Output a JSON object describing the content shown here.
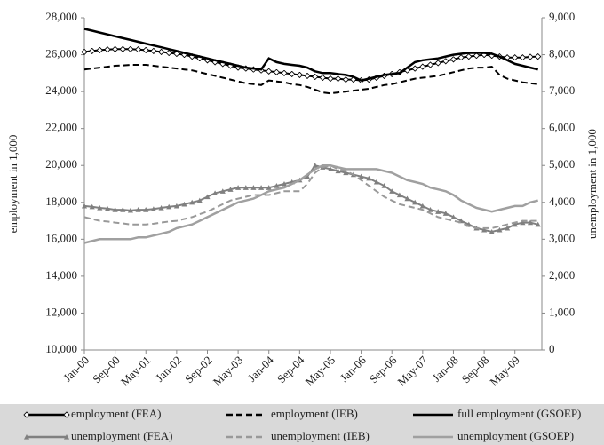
{
  "chart_data": {
    "type": "line",
    "y_label": "employment in 1,000",
    "y2_label": "unemployment in 1,000",
    "categories": [
      "Jan-00",
      null,
      null,
      null,
      "Sep-00",
      null,
      null,
      null,
      "May-01",
      null,
      null,
      null,
      "Jan-02",
      null,
      null,
      null,
      "Sep-02",
      null,
      null,
      null,
      "May-03",
      null,
      null,
      null,
      "Jan-04",
      null,
      null,
      null,
      "Sep-04",
      null,
      null,
      null,
      "May-05",
      null,
      null,
      null,
      "Jan-06",
      null,
      null,
      null,
      "Sep-06",
      null,
      null,
      null,
      "May-07",
      null,
      null,
      null,
      "Jan-08",
      null,
      null,
      null,
      "Sep-08",
      null,
      null,
      null,
      "May-09",
      null,
      null,
      null
    ],
    "ylim": [
      10000,
      28000
    ],
    "yticks": [
      {
        "value": 10000,
        "label": "10,000"
      },
      {
        "value": 12000,
        "label": "12,000"
      },
      {
        "value": 14000,
        "label": "14,000"
      },
      {
        "value": 16000,
        "label": "16,000"
      },
      {
        "value": 18000,
        "label": "18,000"
      },
      {
        "value": 20000,
        "label": "20,000"
      },
      {
        "value": 22000,
        "label": "22,000"
      },
      {
        "value": 24000,
        "label": "24,000"
      },
      {
        "value": 26000,
        "label": "26,000"
      },
      {
        "value": 28000,
        "label": "28,000"
      }
    ],
    "y2lim": [
      0,
      9000
    ],
    "y2ticks": [
      0,
      {
        "value": 1000,
        "label": "1,000"
      },
      {
        "value": 2000,
        "label": "2,000"
      },
      {
        "value": 3000,
        "label": "3,000"
      },
      {
        "value": 4000,
        "label": "4,000"
      },
      {
        "value": 5000,
        "label": "5,000"
      },
      {
        "value": 6000,
        "label": "6,000"
      },
      {
        "value": 7000,
        "label": "7,000"
      },
      {
        "value": 8000,
        "label": "8,000"
      },
      {
        "value": 9000,
        "label": "9,000"
      }
    ],
    "legend": "bottom",
    "series": [
      {
        "name": "employment (FEA)",
        "color": "#000000",
        "dash": "solid",
        "marker": "diamond",
        "axis": "y",
        "values": [
          26150,
          26200,
          26250,
          26280,
          26300,
          26300,
          26300,
          26280,
          26250,
          26200,
          26150,
          26100,
          26050,
          26000,
          25900,
          25800,
          25700,
          25600,
          25500,
          25400,
          25300,
          25250,
          25200,
          25150,
          25100,
          25050,
          25000,
          24950,
          24900,
          24850,
          24800,
          24750,
          24700,
          24700,
          24650,
          24650,
          24600,
          24650,
          24750,
          24850,
          24950,
          25050,
          25150,
          25250,
          25350,
          25450,
          25550,
          25650,
          25750,
          25850,
          25900,
          25950,
          26000,
          25950,
          25900,
          25850,
          25850,
          25850,
          25880,
          25900
        ]
      },
      {
        "name": "employment (IEB)",
        "color": "#000000",
        "dash": "dashed",
        "marker": "none",
        "axis": "y",
        "values": [
          25200,
          25250,
          25300,
          25350,
          25400,
          25420,
          25450,
          25450,
          25450,
          25400,
          25350,
          25300,
          25250,
          25200,
          25150,
          25050,
          24950,
          24850,
          24750,
          24650,
          24550,
          24450,
          24400,
          24350,
          24600,
          24550,
          24500,
          24400,
          24350,
          24250,
          24100,
          23950,
          23900,
          23950,
          24000,
          24050,
          24100,
          24150,
          24250,
          24350,
          24400,
          24500,
          24600,
          24700,
          24750,
          24800,
          24850,
          24950,
          25050,
          25150,
          25250,
          25300,
          25300,
          25350,
          24900,
          24700,
          24600,
          24500,
          24450,
          24400
        ]
      },
      {
        "name": "full employment (GSOEP)",
        "color": "#000000",
        "dash": "solid",
        "marker": "none",
        "axis": "y",
        "values": [
          27400,
          27300,
          27200,
          27100,
          27000,
          26900,
          26800,
          26700,
          26600,
          26500,
          26400,
          26300,
          26200,
          26100,
          26000,
          25900,
          25800,
          25700,
          25600,
          25500,
          25400,
          25300,
          25250,
          25200,
          25800,
          25600,
          25500,
          25450,
          25400,
          25300,
          25100,
          25000,
          25000,
          24950,
          24900,
          24800,
          24600,
          24700,
          24800,
          24900,
          24950,
          25000,
          25300,
          25600,
          25700,
          25750,
          25800,
          25900,
          26000,
          26050,
          26100,
          26100,
          26100,
          26050,
          25900,
          25700,
          25500,
          25400,
          25300,
          25200
        ]
      },
      {
        "name": "unemployment (FEA)",
        "color": "#808080",
        "dash": "solid",
        "marker": "triangle",
        "axis": "y2",
        "values": [
          3900,
          3880,
          3850,
          3830,
          3800,
          3800,
          3780,
          3800,
          3800,
          3820,
          3850,
          3880,
          3900,
          3950,
          4000,
          4050,
          4150,
          4250,
          4300,
          4350,
          4400,
          4400,
          4400,
          4400,
          4400,
          4450,
          4500,
          4550,
          4600,
          4700,
          5000,
          4950,
          4900,
          4850,
          4800,
          4750,
          4700,
          4650,
          4550,
          4450,
          4300,
          4200,
          4100,
          4000,
          3900,
          3800,
          3750,
          3700,
          3600,
          3500,
          3400,
          3300,
          3250,
          3200,
          3250,
          3300,
          3400,
          3450,
          3450,
          3400
        ]
      },
      {
        "name": "unemployment (IEB)",
        "color": "#999999",
        "dash": "dashed",
        "marker": "none",
        "axis": "y2",
        "values": [
          3600,
          3550,
          3500,
          3480,
          3450,
          3430,
          3400,
          3400,
          3400,
          3420,
          3450,
          3480,
          3500,
          3550,
          3600,
          3680,
          3750,
          3850,
          3950,
          4050,
          4100,
          4150,
          4200,
          4200,
          4200,
          4250,
          4300,
          4300,
          4300,
          4500,
          4800,
          4950,
          5000,
          4900,
          4850,
          4750,
          4600,
          4450,
          4300,
          4150,
          4050,
          3950,
          3900,
          3850,
          3800,
          3700,
          3600,
          3550,
          3500,
          3450,
          3350,
          3300,
          3300,
          3300,
          3350,
          3400,
          3450,
          3500,
          3500,
          3500
        ]
      },
      {
        "name": "unemployment (GSOEP)",
        "color": "#a0a0a0",
        "dash": "solid",
        "marker": "none",
        "axis": "y2",
        "values": [
          2900,
          2950,
          3000,
          3000,
          3000,
          3000,
          3000,
          3050,
          3050,
          3100,
          3150,
          3200,
          3300,
          3350,
          3400,
          3500,
          3600,
          3700,
          3800,
          3900,
          4000,
          4050,
          4100,
          4200,
          4300,
          4350,
          4400,
          4500,
          4600,
          4750,
          4900,
          5000,
          5000,
          4950,
          4900,
          4900,
          4900,
          4900,
          4900,
          4850,
          4800,
          4700,
          4600,
          4550,
          4500,
          4400,
          4350,
          4300,
          4200,
          4050,
          3950,
          3850,
          3800,
          3750,
          3800,
          3850,
          3900,
          3900,
          4000,
          4050
        ]
      }
    ]
  }
}
